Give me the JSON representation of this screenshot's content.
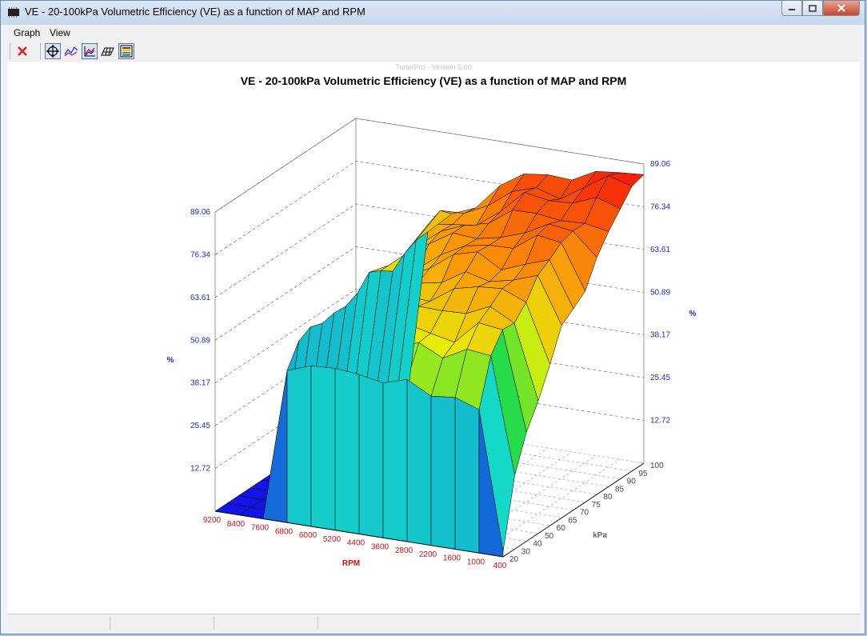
{
  "window": {
    "title": "VE - 20-100kPa Volumetric Efficiency (VE) as a function of MAP and RPM",
    "app_icon": "chip-icon"
  },
  "menu": [
    "Graph",
    "View"
  ],
  "toolbar": {
    "buttons": [
      {
        "name": "close-graph",
        "icon": "red-x-icon",
        "pressed": false
      },
      {
        "name": "rotate-view",
        "icon": "move-crosshair-icon",
        "pressed": true
      },
      {
        "name": "line-graph",
        "icon": "line-graph-icon",
        "pressed": false
      },
      {
        "name": "surface-3d",
        "icon": "surface-graph-icon",
        "pressed": true
      },
      {
        "name": "wireframe",
        "icon": "wireframe-icon",
        "pressed": false
      },
      {
        "name": "color-legend",
        "icon": "color-bars-icon",
        "pressed": true
      }
    ]
  },
  "colors": {
    "accent_axis": "#1e2cc4",
    "rpm_label": "#d01010",
    "kpa_label": "#666666"
  },
  "chart_data": {
    "type": "surface3d",
    "watermark": "TunerPro - Version 5.00",
    "title": "VE - 20-100kPa Volumetric Efficiency (VE) as a function of MAP and RPM",
    "xlabel": "RPM",
    "ylabel": "kPa",
    "zlabel": "%",
    "rpm_ticks": [
      "9200",
      "8400",
      "7600",
      "6800",
      "6000",
      "5200",
      "4400",
      "3600",
      "2800",
      "2200",
      "1600",
      "1000",
      "400"
    ],
    "kpa_ticks": [
      "20",
      "30",
      "40",
      "50",
      "60",
      "65",
      "70",
      "75",
      "80",
      "85",
      "90",
      "95",
      "100"
    ],
    "z_ticks_left": [
      "12.72",
      "25.45",
      "38.17",
      "50.89",
      "63.61",
      "76.34",
      "89.06"
    ],
    "z_ticks_right": [
      "12.72",
      "25.45",
      "38.17",
      "50.89",
      "63.61",
      "76.34",
      "89.06"
    ],
    "zlim": [
      0,
      89.06
    ],
    "rpm": [
      9200,
      8400,
      7600,
      6800,
      6000,
      5200,
      4400,
      3600,
      2800,
      2200,
      1600,
      1000,
      400
    ],
    "kpa": [
      20,
      30,
      40,
      50,
      60,
      65,
      70,
      75,
      80,
      85,
      90,
      95,
      100
    ],
    "ve_kpa20": [
      0,
      0,
      0,
      48,
      48,
      47,
      48,
      46,
      46,
      44,
      48,
      44,
      0
    ],
    "ve_kpa100": [
      0,
      0,
      0,
      58,
      67,
      70,
      74,
      78,
      82,
      82,
      84,
      86,
      88
    ],
    "surface_note": "VE rises from ~45% at 20 kPa to ~88% at 100 kPa for RPM 400-6800; zero above 7600 RPM"
  }
}
